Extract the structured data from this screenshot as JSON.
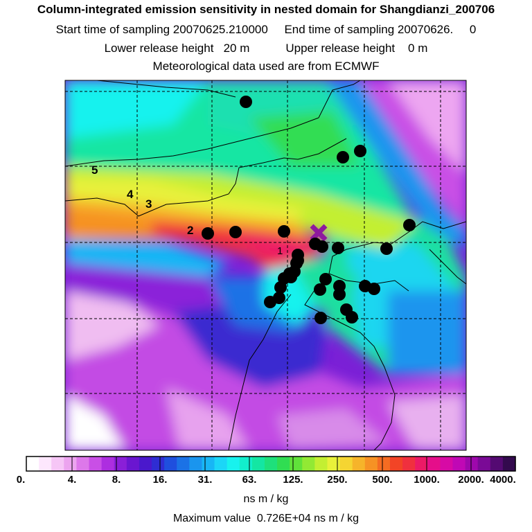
{
  "title": {
    "line1": "Column-integrated emission sensitivity in nested domain for Shangdianzi_200706",
    "line2": "Start time of sampling 20070625.210000     End time of sampling 20070626.     0",
    "line3": "Lower release height   20 m           Upper release height    0 m",
    "line4": "Meteorological data used are from ECMWF"
  },
  "map": {
    "cluster_labels": [
      "1",
      "2",
      "3",
      "4",
      "5"
    ],
    "release_marker": "release-site-x",
    "point_count": 30
  },
  "colorbar": {
    "tick_labels": [
      "0.",
      "4.",
      "8.",
      "16.",
      "31.",
      "63.",
      "125.",
      "250.",
      "500.",
      "1000.",
      "2000.",
      "4000."
    ],
    "unit": "ns m / kg",
    "colors": [
      "#ffffff",
      "#fde7fd",
      "#f6c6f6",
      "#eca4ef",
      "#dd78ea",
      "#c94fe6",
      "#ad2ee0",
      "#8a1fd8",
      "#6a16d0",
      "#4a18cc",
      "#2f2dd3",
      "#1f4fde",
      "#1b72e6",
      "#1a95ee",
      "#18b6f5",
      "#1cd6f7",
      "#18f2ee",
      "#12eecc",
      "#14e6a3",
      "#1ee07b",
      "#30dd52",
      "#60e23a",
      "#92e934",
      "#c3ef32",
      "#e8f13a",
      "#f5d532",
      "#f6b42a",
      "#f69224",
      "#f46c22",
      "#f24426",
      "#f0303e",
      "#ec1a66",
      "#e50e8a",
      "#d70aa5",
      "#c008b5",
      "#9e08ac",
      "#7a0a96",
      "#540a72",
      "#330a4e"
    ]
  },
  "max_value": "Maximum value  0.726E+04 ns m / kg"
}
